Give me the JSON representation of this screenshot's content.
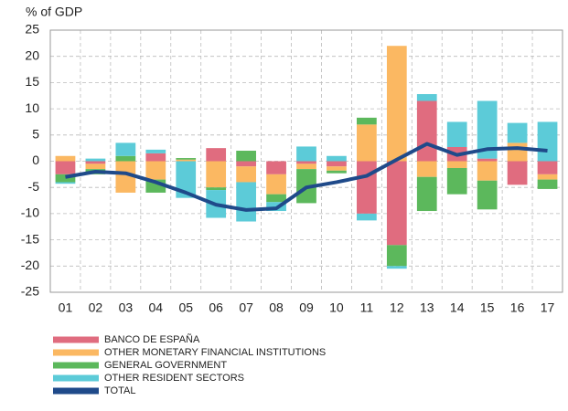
{
  "chart_data": {
    "type": "stacked_bar_line",
    "y_label": "% of GDP",
    "categories": [
      "01",
      "02",
      "03",
      "04",
      "05",
      "06",
      "07",
      "08",
      "09",
      "10",
      "11",
      "12",
      "13",
      "14",
      "15",
      "16",
      "17"
    ],
    "series": [
      {
        "name": "BANCO DE ESPAÑA",
        "color": "#e06c7f",
        "values": [
          -2.5,
          -0.5,
          0,
          1.5,
          0,
          2.5,
          -1,
          -2.5,
          -0.5,
          -1,
          -10,
          -16,
          11.5,
          2.7,
          0.5,
          -4.5,
          -2.5
        ]
      },
      {
        "name": "OTHER MONETARY FINANCIAL INSTITUTIONS",
        "color": "#fbb862",
        "values": [
          1,
          -1,
          -6,
          -3.5,
          0.3,
          -5,
          -3,
          -3.8,
          -1,
          -0.8,
          7,
          22,
          -3,
          -1.3,
          -3.7,
          3.5,
          -1
        ]
      },
      {
        "name": "GENERAL GOVERNMENT",
        "color": "#5cb85c",
        "values": [
          -1.5,
          -1,
          1,
          -2.5,
          0.3,
          -0.5,
          2,
          -1.5,
          -6.5,
          -0.5,
          1.3,
          -4,
          -6.5,
          -5,
          -5.5,
          0,
          -1.8
        ]
      },
      {
        "name": "OTHER RESIDENT SECTORS",
        "color": "#5ccbd8",
        "values": [
          -0.3,
          0.5,
          2.5,
          0.7,
          -7,
          -5.3,
          -7.5,
          -1.7,
          2.8,
          1,
          -1.3,
          -0.5,
          1.3,
          4.8,
          11,
          3.8,
          7.5
        ]
      },
      {
        "name": "TOTAL",
        "color": "#1f4a8a",
        "line": true,
        "values": [
          -3,
          -2,
          -2.3,
          -4,
          -6,
          -8.3,
          -9.3,
          -9,
          -5,
          -4,
          -2.8,
          0.3,
          3.3,
          1.2,
          2.3,
          2.5,
          2
        ]
      }
    ],
    "ylim": [
      -25,
      25
    ],
    "yticks": [
      -25,
      -20,
      -15,
      -10,
      -5,
      0,
      5,
      10,
      15,
      20,
      25
    ],
    "grid": true
  }
}
